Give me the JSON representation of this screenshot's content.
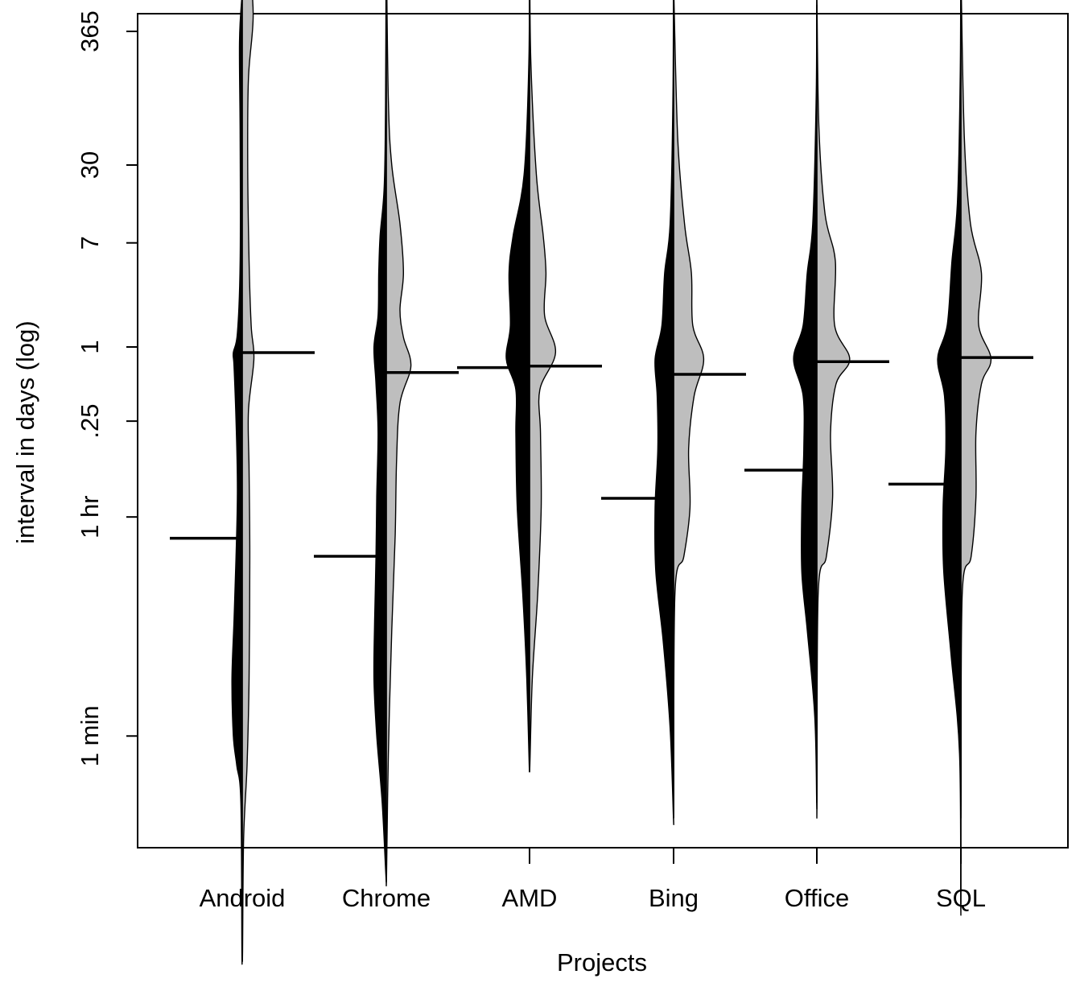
{
  "chart_data": {
    "type": "violin",
    "variant": "split violin (bean plot), left half black, right half gray",
    "xlabel": "Projects",
    "ylabel": "interval in days (log)",
    "y_scale": "log",
    "y_unit": "days",
    "y_ticks": [
      {
        "value": 0.000694,
        "label": "1 min"
      },
      {
        "value": 0.041667,
        "label": "1 hr"
      },
      {
        "value": 0.25,
        "label": ".25"
      },
      {
        "value": 1,
        "label": "1"
      },
      {
        "value": 7,
        "label": "7"
      },
      {
        "value": 30,
        "label": "30"
      },
      {
        "value": 365,
        "label": "365"
      }
    ],
    "categories": [
      "Android",
      "Chrome",
      "AMD",
      "Bing",
      "Office",
      "SQL"
    ],
    "halves": [
      {
        "side": "left",
        "color": "#000000"
      },
      {
        "side": "right",
        "color": "#bebebe"
      }
    ],
    "medians": {
      "left": [
        0.028,
        0.02,
        0.68,
        0.059,
        0.1,
        0.077
      ],
      "right": [
        0.9,
        0.62,
        0.7,
        0.6,
        0.76,
        0.82
      ]
    },
    "groups": [
      {
        "name": "Android",
        "left": {
          "min": 1.2e-05,
          "max": 700,
          "density": [
            [
              1.2e-05,
              0.005
            ],
            [
              0.0002,
              0.02
            ],
            [
              0.0004,
              0.08
            ],
            [
              0.0007,
              0.13
            ],
            [
              0.002,
              0.15
            ],
            [
              0.006,
              0.12
            ],
            [
              0.02,
              0.09
            ],
            [
              0.07,
              0.07
            ],
            [
              0.25,
              0.09
            ],
            [
              0.7,
              0.12
            ],
            [
              0.9,
              0.13
            ],
            [
              1.3,
              0.07
            ],
            [
              5,
              0.03
            ],
            [
              50,
              0.03
            ],
            [
              300,
              0.04
            ],
            [
              700,
              0.005
            ]
          ]
        },
        "right": {
          "min": 1.2e-05,
          "max": 1800,
          "density": [
            [
              1.2e-05,
              0.005
            ],
            [
              0.0001,
              0.02
            ],
            [
              0.0004,
              0.07
            ],
            [
              0.002,
              0.1
            ],
            [
              0.02,
              0.11
            ],
            [
              0.1,
              0.1
            ],
            [
              0.3,
              0.09
            ],
            [
              0.8,
              0.17
            ],
            [
              1.5,
              0.13
            ],
            [
              5,
              0.1
            ],
            [
              30,
              0.08
            ],
            [
              150,
              0.09
            ],
            [
              500,
              0.16
            ],
            [
              1500,
              0.08
            ],
            [
              1800,
              0.01
            ]
          ]
        }
      },
      {
        "name": "Chrome",
        "left": {
          "min": 5e-05,
          "max": 1500,
          "density": [
            [
              5e-05,
              0.005
            ],
            [
              0.0002,
              0.06
            ],
            [
              0.0007,
              0.14
            ],
            [
              0.002,
              0.18
            ],
            [
              0.006,
              0.17
            ],
            [
              0.02,
              0.15
            ],
            [
              0.06,
              0.14
            ],
            [
              0.2,
              0.12
            ],
            [
              0.5,
              0.15
            ],
            [
              1,
              0.18
            ],
            [
              1.8,
              0.12
            ],
            [
              4,
              0.11
            ],
            [
              8,
              0.09
            ],
            [
              20,
              0.03
            ],
            [
              100,
              0.01
            ],
            [
              1500,
              0.003
            ]
          ]
        },
        "right": {
          "min": 5e-05,
          "max": 1500,
          "density": [
            [
              5e-05,
              0.003
            ],
            [
              0.0005,
              0.03
            ],
            [
              0.005,
              0.08
            ],
            [
              0.03,
              0.13
            ],
            [
              0.12,
              0.15
            ],
            [
              0.35,
              0.2
            ],
            [
              0.7,
              0.36
            ],
            [
              1.2,
              0.25
            ],
            [
              2,
              0.2
            ],
            [
              4,
              0.25
            ],
            [
              10,
              0.2
            ],
            [
              30,
              0.08
            ],
            [
              100,
              0.03
            ],
            [
              1500,
              0.002
            ]
          ]
        }
      },
      {
        "name": "AMD",
        "left": {
          "min": 0.0004,
          "max": 1200,
          "density": [
            [
              0.0004,
              0.005
            ],
            [
              0.002,
              0.04
            ],
            [
              0.01,
              0.1
            ],
            [
              0.05,
              0.18
            ],
            [
              0.2,
              0.2
            ],
            [
              0.45,
              0.2
            ],
            [
              0.8,
              0.34
            ],
            [
              1.5,
              0.28
            ],
            [
              4,
              0.3
            ],
            [
              8,
              0.24
            ],
            [
              25,
              0.08
            ],
            [
              200,
              0.01
            ],
            [
              1200,
              0.003
            ]
          ]
        },
        "right": {
          "min": 0.0004,
          "max": 1200,
          "density": [
            [
              0.0004,
              0.005
            ],
            [
              0.002,
              0.04
            ],
            [
              0.01,
              0.12
            ],
            [
              0.05,
              0.17
            ],
            [
              0.2,
              0.16
            ],
            [
              0.45,
              0.15
            ],
            [
              0.9,
              0.38
            ],
            [
              1.8,
              0.22
            ],
            [
              4,
              0.24
            ],
            [
              8,
              0.2
            ],
            [
              25,
              0.1
            ],
            [
              200,
              0.02
            ],
            [
              1200,
              0.003
            ]
          ]
        }
      },
      {
        "name": "Bing",
        "left": {
          "min": 0.00015,
          "max": 800,
          "density": [
            [
              0.00015,
              0.002
            ],
            [
              0.0008,
              0.05
            ],
            [
              0.004,
              0.15
            ],
            [
              0.015,
              0.26
            ],
            [
              0.05,
              0.27
            ],
            [
              0.15,
              0.23
            ],
            [
              0.4,
              0.24
            ],
            [
              0.8,
              0.27
            ],
            [
              1.5,
              0.17
            ],
            [
              4,
              0.13
            ],
            [
              10,
              0.05
            ],
            [
              100,
              0.01
            ],
            [
              800,
              0.002
            ]
          ]
        },
        "right": {
          "min": 0.0002,
          "max": 800,
          "density": [
            [
              0.0002,
              0.002
            ],
            [
              0.01,
              0.02
            ],
            [
              0.02,
              0.15
            ],
            [
              0.05,
              0.24
            ],
            [
              0.15,
              0.22
            ],
            [
              0.4,
              0.3
            ],
            [
              0.8,
              0.44
            ],
            [
              1.5,
              0.28
            ],
            [
              4,
              0.26
            ],
            [
              10,
              0.16
            ],
            [
              50,
              0.06
            ],
            [
              800,
              0.002
            ]
          ]
        }
      },
      {
        "name": "Office",
        "left": {
          "min": 0.0002,
          "max": 600,
          "density": [
            [
              0.0002,
              0.002
            ],
            [
              0.001,
              0.03
            ],
            [
              0.005,
              0.14
            ],
            [
              0.015,
              0.22
            ],
            [
              0.05,
              0.22
            ],
            [
              0.15,
              0.19
            ],
            [
              0.4,
              0.2
            ],
            [
              0.8,
              0.34
            ],
            [
              1.5,
              0.2
            ],
            [
              4,
              0.14
            ],
            [
              10,
              0.06
            ],
            [
              100,
              0.01
            ],
            [
              600,
              0.002
            ]
          ]
        },
        "right": {
          "min": 0.0002,
          "max": 600,
          "density": [
            [
              0.0002,
              0.002
            ],
            [
              0.01,
              0.02
            ],
            [
              0.02,
              0.14
            ],
            [
              0.06,
              0.23
            ],
            [
              0.2,
              0.2
            ],
            [
              0.5,
              0.28
            ],
            [
              0.8,
              0.48
            ],
            [
              1.5,
              0.26
            ],
            [
              5,
              0.27
            ],
            [
              12,
              0.12
            ],
            [
              60,
              0.03
            ],
            [
              600,
              0.002
            ]
          ]
        }
      },
      {
        "name": "SQL",
        "left": {
          "min": 3e-05,
          "max": 1000,
          "density": [
            [
              3e-05,
              0.002
            ],
            [
              0.0005,
              0.02
            ],
            [
              0.003,
              0.14
            ],
            [
              0.015,
              0.25
            ],
            [
              0.05,
              0.26
            ],
            [
              0.15,
              0.22
            ],
            [
              0.4,
              0.24
            ],
            [
              0.8,
              0.34
            ],
            [
              1.5,
              0.2
            ],
            [
              5,
              0.13
            ],
            [
              15,
              0.05
            ],
            [
              150,
              0.01
            ],
            [
              1000,
              0.002
            ]
          ]
        },
        "right": {
          "min": 0.0002,
          "max": 1000,
          "density": [
            [
              0.0002,
              0.002
            ],
            [
              0.01,
              0.02
            ],
            [
              0.02,
              0.15
            ],
            [
              0.06,
              0.22
            ],
            [
              0.2,
              0.22
            ],
            [
              0.5,
              0.3
            ],
            [
              0.8,
              0.44
            ],
            [
              1.5,
              0.26
            ],
            [
              4,
              0.3
            ],
            [
              10,
              0.14
            ],
            [
              50,
              0.05
            ],
            [
              1000,
              0.002
            ]
          ]
        }
      }
    ]
  }
}
